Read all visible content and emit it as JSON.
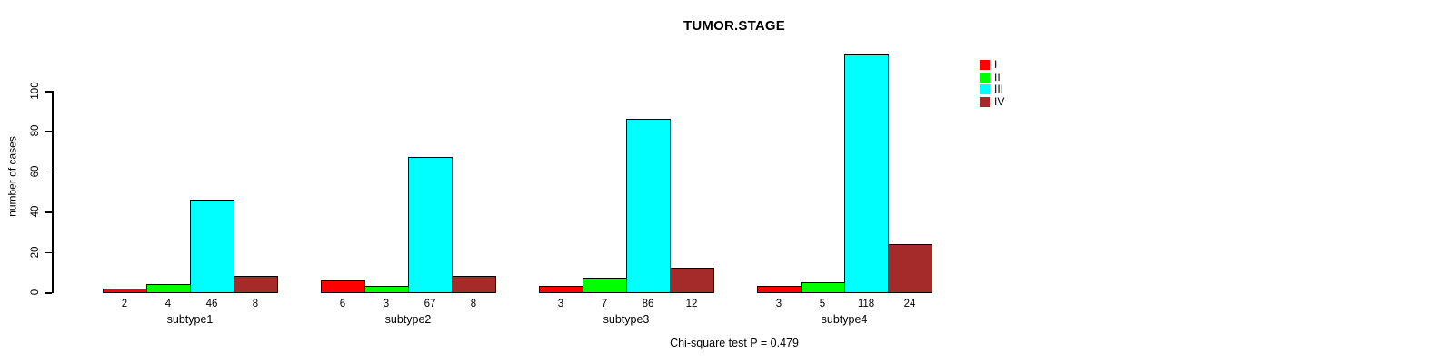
{
  "chart_data": {
    "type": "bar",
    "title": "TUMOR.STAGE",
    "ylabel": "number of cases",
    "xlabel": "",
    "footnote": "Chi-square test P = 0.479",
    "categories": [
      "subtype1",
      "subtype2",
      "subtype3",
      "subtype4"
    ],
    "series": [
      {
        "name": "I",
        "color": "#FF0000",
        "values": [
          2,
          6,
          3,
          3
        ]
      },
      {
        "name": "II",
        "color": "#00FF00",
        "values": [
          4,
          3,
          7,
          5
        ]
      },
      {
        "name": "III",
        "color": "#00FFFF",
        "values": [
          46,
          67,
          86,
          118
        ]
      },
      {
        "name": "IV",
        "color": "#A52A2A",
        "values": [
          8,
          8,
          12,
          24
        ]
      }
    ],
    "yticks": [
      0,
      20,
      40,
      60,
      80,
      100
    ],
    "ylim": [
      0,
      118
    ],
    "grid": false,
    "legend_position": "top-right-outside",
    "bar_value_labels": true,
    "background": "#FFFFFF"
  }
}
